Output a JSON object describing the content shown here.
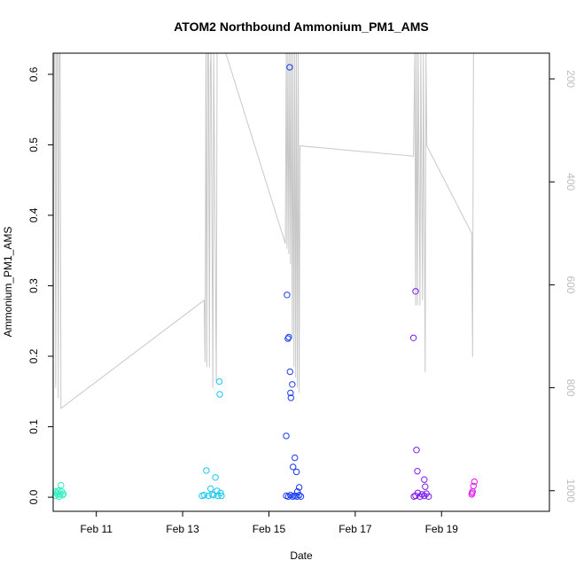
{
  "chart_data": {
    "type": "scatter",
    "title": "ATOM2 Northbound Ammonium_PM1_AMS",
    "xlabel": "Date",
    "ylabel": "Ammonium_PM1_AMS",
    "x_ticks": [
      {
        "label": "Feb 11",
        "day": 11
      },
      {
        "label": "Feb 13",
        "day": 13
      },
      {
        "label": "Feb 15",
        "day": 15
      },
      {
        "label": "Feb 17",
        "day": 17
      },
      {
        "label": "Feb 19",
        "day": 19
      }
    ],
    "xlim": [
      10.0,
      21.5
    ],
    "ylim": [
      -0.02,
      0.63
    ],
    "y_ticks": [
      "0.0",
      "0.1",
      "0.2",
      "0.3",
      "0.4",
      "0.5",
      "0.6"
    ],
    "y2_ticks": [
      "200",
      "400",
      "600",
      "800",
      "1000"
    ],
    "y2lim": [
      1040,
      150
    ],
    "grid": false,
    "points": [
      {
        "x": 10.05,
        "y": 0.002,
        "color": "#2ef0c0"
      },
      {
        "x": 10.08,
        "y": 0.006,
        "color": "#2ef0c0"
      },
      {
        "x": 10.1,
        "y": 0.004,
        "color": "#2ef0c0"
      },
      {
        "x": 10.12,
        "y": 0.009,
        "color": "#2ef0c0"
      },
      {
        "x": 10.14,
        "y": 0.001,
        "color": "#2ef0c0"
      },
      {
        "x": 10.16,
        "y": 0.004,
        "color": "#2ef0c0"
      },
      {
        "x": 10.18,
        "y": 0.017,
        "color": "#2ef0c0"
      },
      {
        "x": 10.2,
        "y": 0.008,
        "color": "#2ef0c0"
      },
      {
        "x": 10.22,
        "y": 0.003,
        "color": "#2ef0c0"
      },
      {
        "x": 10.06,
        "y": 0.008,
        "color": "#2ef0c0"
      },
      {
        "x": 10.24,
        "y": 0.005,
        "color": "#2ef0c0"
      },
      {
        "x": 13.45,
        "y": 0.002,
        "color": "#1ac8f0"
      },
      {
        "x": 13.5,
        "y": 0.003,
        "color": "#1ac8f0"
      },
      {
        "x": 13.55,
        "y": 0.038,
        "color": "#1ac8f0"
      },
      {
        "x": 13.6,
        "y": 0.002,
        "color": "#1ac8f0"
      },
      {
        "x": 13.65,
        "y": 0.012,
        "color": "#1ac8f0"
      },
      {
        "x": 13.68,
        "y": 0.004,
        "color": "#1ac8f0"
      },
      {
        "x": 13.72,
        "y": 0.003,
        "color": "#1ac8f0"
      },
      {
        "x": 13.76,
        "y": 0.028,
        "color": "#1ac8f0"
      },
      {
        "x": 13.8,
        "y": 0.009,
        "color": "#1ac8f0"
      },
      {
        "x": 13.82,
        "y": 0.002,
        "color": "#1ac8f0"
      },
      {
        "x": 13.85,
        "y": 0.164,
        "color": "#1ac8f0"
      },
      {
        "x": 13.86,
        "y": 0.146,
        "color": "#1ac8f0"
      },
      {
        "x": 13.88,
        "y": 0.006,
        "color": "#1ac8f0"
      },
      {
        "x": 13.9,
        "y": 0.002,
        "color": "#1ac8f0"
      },
      {
        "x": 15.4,
        "y": 0.087,
        "color": "#1a3cf0"
      },
      {
        "x": 15.42,
        "y": 0.287,
        "color": "#1a3cf0"
      },
      {
        "x": 15.44,
        "y": 0.225,
        "color": "#1a3cf0"
      },
      {
        "x": 15.46,
        "y": 0.227,
        "color": "#1a3cf0"
      },
      {
        "x": 15.48,
        "y": 0.61,
        "color": "#1a3cf0"
      },
      {
        "x": 15.49,
        "y": 0.178,
        "color": "#1a3cf0"
      },
      {
        "x": 15.5,
        "y": 0.148,
        "color": "#1a3cf0"
      },
      {
        "x": 15.51,
        "y": 0.141,
        "color": "#1a3cf0"
      },
      {
        "x": 15.54,
        "y": 0.16,
        "color": "#1a3cf0"
      },
      {
        "x": 15.56,
        "y": 0.043,
        "color": "#1a3cf0"
      },
      {
        "x": 15.6,
        "y": 0.056,
        "color": "#1a3cf0"
      },
      {
        "x": 15.64,
        "y": 0.036,
        "color": "#1a3cf0"
      },
      {
        "x": 15.7,
        "y": 0.014,
        "color": "#1a3cf0"
      },
      {
        "x": 15.66,
        "y": 0.008,
        "color": "#1a3cf0"
      },
      {
        "x": 15.4,
        "y": 0.002,
        "color": "#1a3cf0"
      },
      {
        "x": 15.45,
        "y": 0.001,
        "color": "#1a3cf0"
      },
      {
        "x": 15.5,
        "y": 0.003,
        "color": "#1a3cf0"
      },
      {
        "x": 15.55,
        "y": 0.001,
        "color": "#1a3cf0"
      },
      {
        "x": 15.6,
        "y": 0.002,
        "color": "#1a3cf0"
      },
      {
        "x": 15.65,
        "y": 0.001,
        "color": "#1a3cf0"
      },
      {
        "x": 15.7,
        "y": 0.003,
        "color": "#1a3cf0"
      },
      {
        "x": 15.74,
        "y": 0.001,
        "color": "#1a3cf0"
      },
      {
        "x": 18.35,
        "y": 0.226,
        "color": "#7a1af0"
      },
      {
        "x": 18.4,
        "y": 0.292,
        "color": "#7a1af0"
      },
      {
        "x": 18.42,
        "y": 0.067,
        "color": "#7a1af0"
      },
      {
        "x": 18.44,
        "y": 0.037,
        "color": "#7a1af0"
      },
      {
        "x": 18.6,
        "y": 0.025,
        "color": "#7a1af0"
      },
      {
        "x": 18.62,
        "y": 0.015,
        "color": "#7a1af0"
      },
      {
        "x": 18.4,
        "y": 0.002,
        "color": "#7a1af0"
      },
      {
        "x": 18.45,
        "y": 0.006,
        "color": "#7a1af0"
      },
      {
        "x": 18.5,
        "y": 0.001,
        "color": "#7a1af0"
      },
      {
        "x": 18.55,
        "y": 0.004,
        "color": "#7a1af0"
      },
      {
        "x": 18.6,
        "y": 0.002,
        "color": "#7a1af0"
      },
      {
        "x": 18.65,
        "y": 0.005,
        "color": "#7a1af0"
      },
      {
        "x": 18.7,
        "y": 0.001,
        "color": "#7a1af0"
      },
      {
        "x": 18.36,
        "y": 0.001,
        "color": "#7a1af0"
      },
      {
        "x": 19.7,
        "y": 0.004,
        "color": "#e01af0"
      },
      {
        "x": 19.72,
        "y": 0.008,
        "color": "#e01af0"
      },
      {
        "x": 19.74,
        "y": 0.016,
        "color": "#e01af0"
      },
      {
        "x": 19.76,
        "y": 0.022,
        "color": "#e01af0"
      },
      {
        "x": 19.71,
        "y": 0.006,
        "color": "#e01af0"
      }
    ],
    "line_series": [
      [
        10.0,
        780
      ],
      [
        10.02,
        150
      ],
      [
        10.04,
        150
      ],
      [
        10.06,
        800
      ],
      [
        10.08,
        150
      ],
      [
        10.1,
        150
      ],
      [
        10.12,
        820
      ],
      [
        10.14,
        150
      ],
      [
        10.16,
        150
      ],
      [
        10.18,
        840
      ],
      [
        13.5,
        630
      ],
      [
        13.52,
        750
      ],
      [
        13.54,
        150
      ],
      [
        13.56,
        760
      ],
      [
        13.58,
        150
      ],
      [
        13.6,
        150
      ],
      [
        13.62,
        760
      ],
      [
        13.64,
        180
      ],
      [
        13.66,
        150
      ],
      [
        13.7,
        800
      ],
      [
        13.72,
        150
      ],
      [
        13.78,
        790
      ],
      [
        13.8,
        150
      ],
      [
        13.84,
        150
      ],
      [
        14.0,
        150
      ],
      [
        15.38,
        520
      ],
      [
        15.4,
        150
      ],
      [
        15.42,
        530
      ],
      [
        15.44,
        150
      ],
      [
        15.46,
        540
      ],
      [
        15.48,
        150
      ],
      [
        15.5,
        560
      ],
      [
        15.52,
        150
      ],
      [
        15.54,
        700
      ],
      [
        15.56,
        150
      ],
      [
        15.58,
        760
      ],
      [
        15.6,
        150
      ],
      [
        15.62,
        780
      ],
      [
        15.64,
        150
      ],
      [
        15.66,
        800
      ],
      [
        15.68,
        150
      ],
      [
        15.7,
        810
      ],
      [
        15.72,
        330
      ],
      [
        18.35,
        350
      ],
      [
        18.38,
        150
      ],
      [
        18.4,
        640
      ],
      [
        18.42,
        150
      ],
      [
        18.44,
        640
      ],
      [
        18.46,
        150
      ],
      [
        18.5,
        640
      ],
      [
        18.52,
        150
      ],
      [
        18.56,
        630
      ],
      [
        18.58,
        150
      ],
      [
        18.62,
        770
      ],
      [
        18.64,
        150
      ],
      [
        18.66,
        330
      ],
      [
        19.7,
        500
      ],
      [
        19.72,
        740
      ],
      [
        19.74,
        150
      ]
    ]
  }
}
